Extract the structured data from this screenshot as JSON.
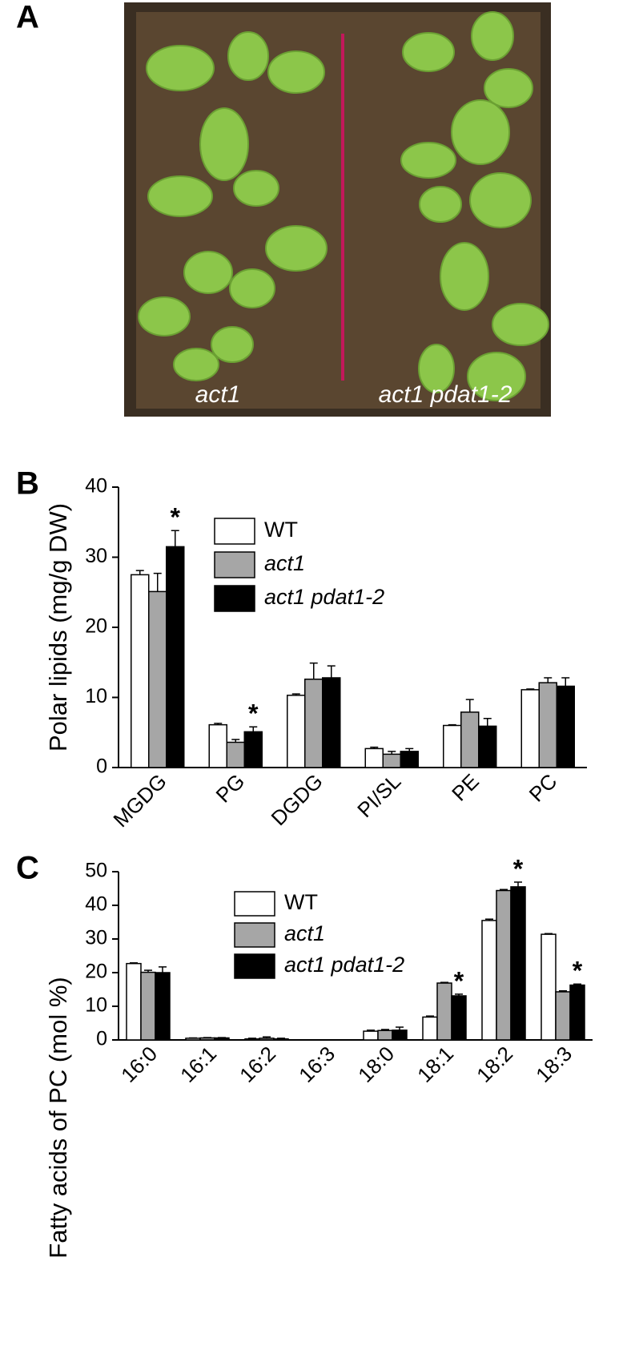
{
  "panel_a": {
    "letter": "A",
    "labels": [
      "act1",
      "act1 pdat1-2"
    ]
  },
  "chart_data": [
    {
      "type": "bar",
      "panel_label": "B",
      "y_label": "Polar lipids (mg/g DW)",
      "categories": [
        "MGDG",
        "PG",
        "DGDG",
        "PI/SL",
        "PE",
        "PC"
      ],
      "ylim": [
        0,
        40
      ],
      "yticks": [
        0,
        10,
        20,
        30,
        40
      ],
      "legend": "upper right",
      "series": [
        {
          "name": "WT",
          "color": "#ffffff",
          "values": [
            27.5,
            6.1,
            10.3,
            2.7,
            6.0,
            11.1
          ],
          "errors": [
            0.6,
            0.2,
            0.2,
            0.2,
            0.1,
            0.1
          ]
        },
        {
          "name": "act1",
          "color": "#a6a6a6",
          "values": [
            25.1,
            3.6,
            12.6,
            1.9,
            7.9,
            12.1
          ],
          "errors": [
            2.6,
            0.4,
            2.3,
            0.4,
            1.8,
            0.7
          ]
        },
        {
          "name": "act1 pdat1-2",
          "color": "#000000",
          "values": [
            31.5,
            5.1,
            12.8,
            2.3,
            5.9,
            11.6
          ],
          "errors": [
            2.3,
            0.7,
            1.7,
            0.4,
            1.1,
            1.2
          ],
          "markers": [
            "*",
            "*",
            null,
            null,
            null,
            null
          ]
        }
      ]
    },
    {
      "type": "bar",
      "panel_label": "C",
      "y_label": "Fatty acids of PC (mol %)",
      "categories": [
        "16:0",
        "16:1",
        "16:2",
        "16:3",
        "18:0",
        "18:1",
        "18:2",
        "18:3"
      ],
      "ylim": [
        0,
        50
      ],
      "yticks": [
        0,
        10,
        20,
        30,
        40,
        50
      ],
      "legend": "upper center",
      "series": [
        {
          "name": "WT",
          "color": "#ffffff",
          "values": [
            22.7,
            0.5,
            0.3,
            0,
            2.6,
            6.8,
            35.5,
            31.4
          ],
          "errors": [
            0.2,
            0.1,
            0.2,
            0,
            0.3,
            0.3,
            0.4,
            0.2
          ]
        },
        {
          "name": "act1",
          "color": "#a6a6a6",
          "values": [
            20.1,
            0.6,
            0.5,
            0,
            2.8,
            16.9,
            44.4,
            14.3
          ],
          "errors": [
            0.6,
            0.1,
            0.4,
            0,
            0.3,
            0.2,
            0.3,
            0.3
          ]
        },
        {
          "name": "act1 pdat1-2",
          "color": "#000000",
          "values": [
            20.0,
            0.6,
            0.3,
            0,
            2.9,
            13.1,
            45.5,
            16.3
          ],
          "errors": [
            1.7,
            0.1,
            0.2,
            0,
            0.9,
            0.5,
            1.4,
            0.3
          ],
          "markers": [
            null,
            null,
            null,
            null,
            null,
            "*",
            "*",
            "*"
          ]
        }
      ]
    }
  ]
}
